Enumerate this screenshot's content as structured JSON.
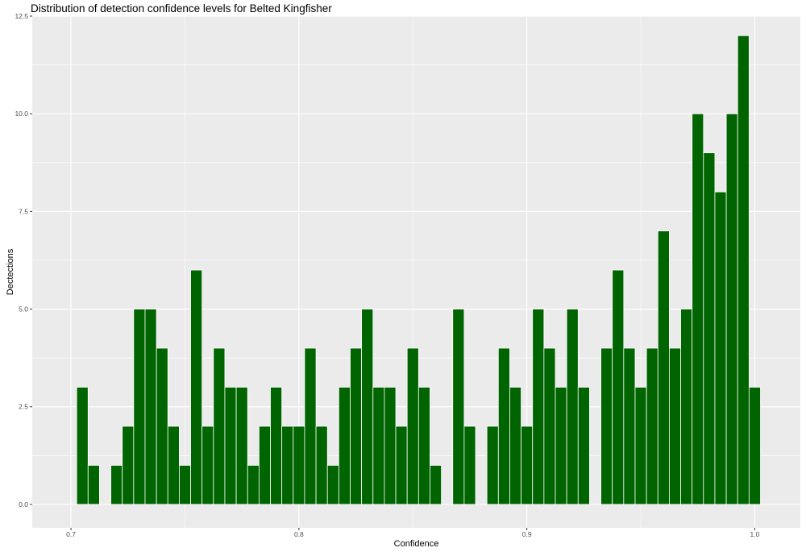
{
  "chart_data": {
    "type": "bar",
    "title": "Distribution of detection confidence levels for Belted Kingfisher",
    "xlabel": "Confidence",
    "ylabel": "Dectections",
    "xlim": [
      0.683,
      1.02
    ],
    "ylim": [
      -0.6,
      12.5
    ],
    "xticks": [
      0.7,
      0.8,
      0.9,
      1.0
    ],
    "xtick_labels": [
      "0.7",
      "0.8",
      "0.9",
      "1.0"
    ],
    "yticks": [
      0,
      2.5,
      5,
      7.5,
      10,
      12.5
    ],
    "ytick_labels": [
      "0.0",
      "2.5",
      "5.0",
      "7.5",
      "10.0",
      "12.5"
    ],
    "grid": true,
    "bin_width": 0.005,
    "x": [
      0.705,
      0.71,
      0.715,
      0.72,
      0.725,
      0.73,
      0.735,
      0.74,
      0.745,
      0.75,
      0.755,
      0.76,
      0.765,
      0.77,
      0.775,
      0.78,
      0.785,
      0.79,
      0.795,
      0.8,
      0.805,
      0.81,
      0.815,
      0.82,
      0.825,
      0.83,
      0.835,
      0.84,
      0.845,
      0.85,
      0.855,
      0.86,
      0.865,
      0.87,
      0.875,
      0.88,
      0.885,
      0.89,
      0.895,
      0.9,
      0.905,
      0.91,
      0.915,
      0.92,
      0.925,
      0.93,
      0.935,
      0.94,
      0.945,
      0.95,
      0.955,
      0.96,
      0.965,
      0.97,
      0.975,
      0.98,
      0.985,
      0.99,
      0.995,
      1.0
    ],
    "values": [
      3,
      1,
      0,
      1,
      2,
      5,
      5,
      4,
      2,
      1,
      6,
      2,
      4,
      3,
      3,
      1,
      2,
      3,
      2,
      2,
      4,
      2,
      1,
      3,
      4,
      5,
      3,
      3,
      2,
      4,
      3,
      1,
      0,
      5,
      2,
      0,
      2,
      4,
      3,
      2,
      5,
      4,
      3,
      5,
      3,
      0,
      4,
      6,
      4,
      3,
      4,
      7,
      4,
      5,
      10,
      9,
      8,
      10,
      12,
      3
    ],
    "bar_color": "#006400",
    "panel_background": "#EBEBEB",
    "grid_color": "#FFFFFF"
  }
}
